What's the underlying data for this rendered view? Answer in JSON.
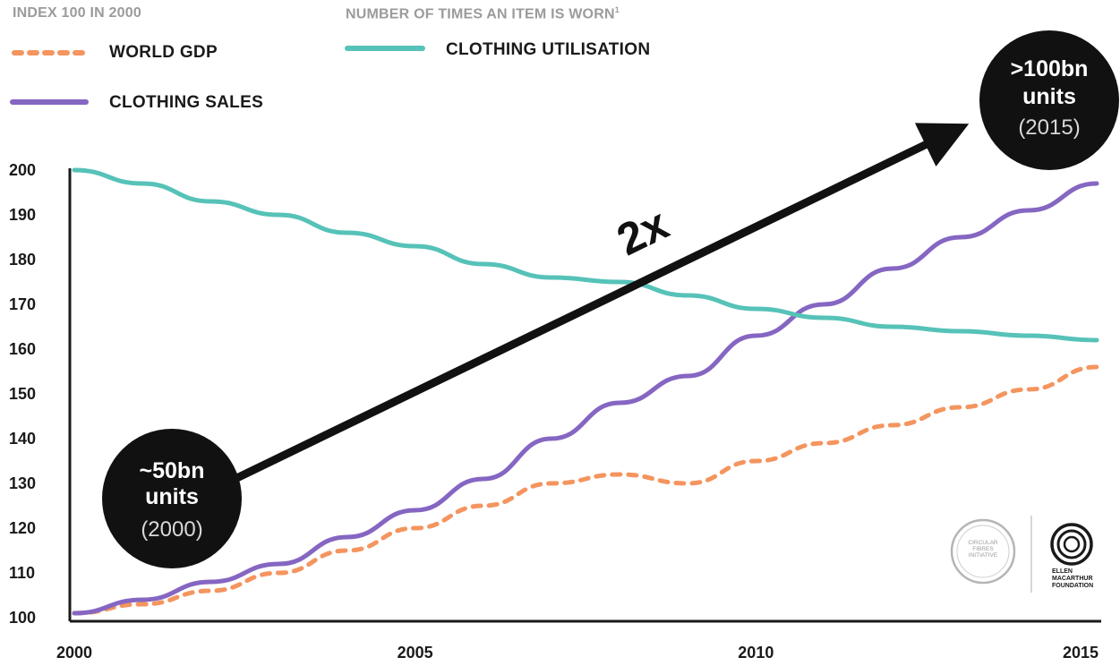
{
  "header": {
    "left_title": "INDEX 100 IN 2000",
    "right_title": "NUMBER OF TIMES AN ITEM IS WORN",
    "right_title_footnote": "1"
  },
  "legend": {
    "world_gdp": "WORLD GDP",
    "clothing_sales": "CLOTHING SALES",
    "clothing_utilisation": "CLOTHING UTILISATION"
  },
  "colors": {
    "world_gdp": "#f4955f",
    "clothing_sales": "#8566c2",
    "clothing_utilisation": "#56c2b8",
    "arrow": "#111111",
    "bubble": "#111111"
  },
  "annotations": {
    "start_bubble": {
      "line1": "~50bn",
      "line2": "units",
      "line3": "(2000)"
    },
    "end_bubble": {
      "line1": ">100bn",
      "line2": "units",
      "line3": "(2015)"
    },
    "multiplier": "2x"
  },
  "logos": {
    "left": "CIRCULAR FIBRES INITIATIVE",
    "right_line1": "ELLEN",
    "right_line2": "MACARTHUR",
    "right_line3": "FOUNDATION"
  },
  "chart_data": {
    "type": "line",
    "xlim": [
      2000,
      2015
    ],
    "ylim": [
      100,
      200
    ],
    "x_ticks": [
      2000,
      2005,
      2010,
      2015
    ],
    "y_ticks": [
      100,
      110,
      120,
      130,
      140,
      150,
      160,
      170,
      180,
      190,
      200
    ],
    "grid": false,
    "series": [
      {
        "name": "WORLD GDP",
        "style": "dashed",
        "x": [
          2000,
          2001,
          2002,
          2003,
          2004,
          2005,
          2006,
          2007,
          2008,
          2009,
          2010,
          2011,
          2012,
          2013,
          2014,
          2015
        ],
        "y": [
          101,
          103,
          106,
          110,
          115,
          120,
          125,
          130,
          132,
          130,
          135,
          139,
          143,
          147,
          151,
          156
        ]
      },
      {
        "name": "CLOTHING SALES",
        "style": "solid",
        "x": [
          2000,
          2001,
          2002,
          2003,
          2004,
          2005,
          2006,
          2007,
          2008,
          2009,
          2010,
          2011,
          2012,
          2013,
          2014,
          2015
        ],
        "y": [
          101,
          104,
          108,
          112,
          118,
          124,
          131,
          140,
          148,
          154,
          163,
          170,
          178,
          185,
          191,
          197
        ]
      },
      {
        "name": "CLOTHING UTILISATION",
        "style": "solid",
        "x": [
          2000,
          2001,
          2002,
          2003,
          2004,
          2005,
          2006,
          2007,
          2008,
          2009,
          2010,
          2011,
          2012,
          2013,
          2014,
          2015
        ],
        "y": [
          200,
          197,
          193,
          190,
          186,
          183,
          179,
          176,
          175,
          172,
          169,
          167,
          165,
          164,
          163,
          162
        ]
      }
    ]
  }
}
